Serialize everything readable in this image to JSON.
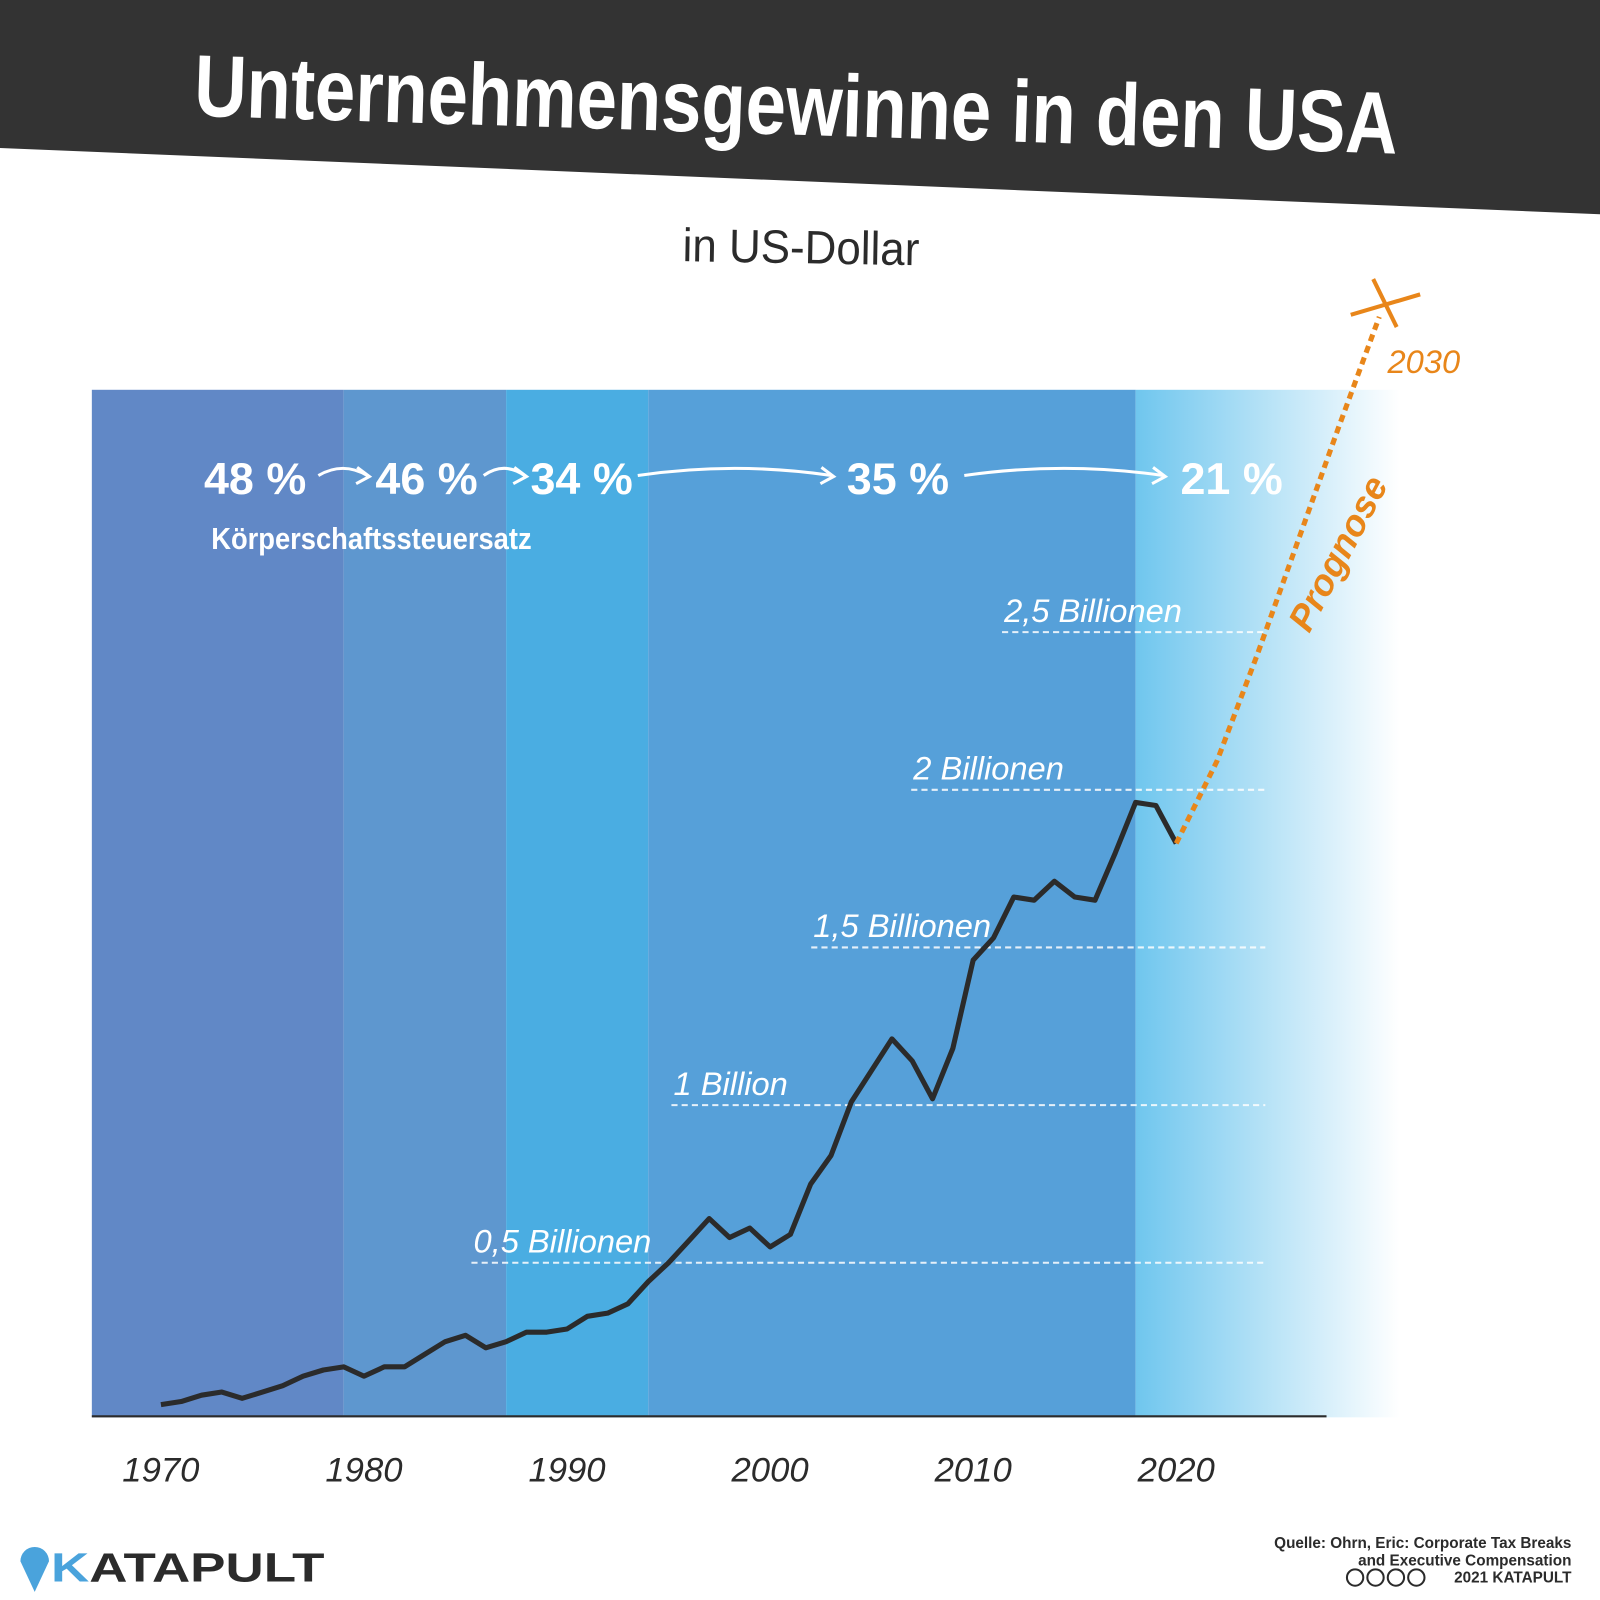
{
  "chart_data": {
    "type": "line",
    "title": "Unternehmensgewinne in den USA",
    "subtitle": "in US-Dollar",
    "xlim": [
      1966.6,
      2027.4
    ],
    "xticks": [
      1970,
      1980,
      1990,
      2000,
      2010,
      2020
    ],
    "ylim": [
      0,
      3.5
    ],
    "yticks": [
      {
        "value": 0.5,
        "label": "0,5  Billionen"
      },
      {
        "value": 1,
        "label": "1 Billion"
      },
      {
        "value": 1.5,
        "label": "1,5 Billionen"
      },
      {
        "value": 2,
        "label": "2 Billionen"
      },
      {
        "value": 2.5,
        "label": "2,5 Billionen"
      }
    ],
    "grid": true,
    "series": [
      {
        "color": "#2b2b2b",
        "x": [
          1970,
          1971,
          1972,
          1973,
          1974,
          1975,
          1976,
          1977,
          1978,
          1979,
          1980,
          1981,
          1982,
          1983,
          1984,
          1985,
          1986,
          1987,
          1988,
          1989,
          1990,
          1991,
          1992,
          1993,
          1994,
          1995,
          1996,
          1997,
          1998,
          1999,
          2000,
          2001,
          2002,
          2003,
          2004,
          2005,
          2006,
          2007,
          2008,
          2009,
          2010,
          2011,
          2012,
          2013,
          2014,
          2015,
          2016,
          2017,
          2018,
          2019,
          2020
        ],
        "values": [
          0.05,
          0.06,
          0.08,
          0.09,
          0.07,
          0.09,
          0.11,
          0.14,
          0.16,
          0.17,
          0.14,
          0.17,
          0.17,
          0.21,
          0.25,
          0.27,
          0.23,
          0.25,
          0.28,
          0.28,
          0.29,
          0.33,
          0.34,
          0.37,
          0.44,
          0.5,
          0.57,
          0.64,
          0.58,
          0.61,
          0.55,
          0.59,
          0.75,
          0.84,
          1.01,
          1.11,
          1.21,
          1.14,
          1.02,
          1.18,
          1.46,
          1.53,
          1.66,
          1.65,
          1.71,
          1.66,
          1.65,
          1.8,
          1.96,
          1.95,
          1.83
        ]
      },
      {
        "name": "Prognose",
        "color": "#e8861a",
        "dashed": true,
        "x": [
          2020,
          2021,
          2022,
          2024,
          2026,
          2028,
          2030
        ],
        "values": [
          1.83,
          1.96,
          2.09,
          2.43,
          2.79,
          3.15,
          3.5
        ]
      }
    ],
    "forecast_end_label": "2030",
    "tax_rate_label": "Körperschaftssteuersatz",
    "tax_bands": [
      {
        "label": "48 %",
        "from": 1966.6,
        "to": 1979,
        "color": "#6188c6"
      },
      {
        "label": "46 %",
        "from": 1979,
        "to": 1987,
        "color": "#5e97cf"
      },
      {
        "label": "34 %",
        "from": 1987,
        "to": 1994,
        "color": "#4aade2"
      },
      {
        "label": "35 %",
        "from": 1994,
        "to": 2018,
        "color": "#56a0d9"
      },
      {
        "label": "21 %",
        "from": 2018,
        "to": 2031,
        "color": "#6fc6ee"
      }
    ]
  },
  "footer": {
    "brand": "KATAPULT",
    "source_lines": [
      "Quelle: Ohrn, Eric: Corporate Tax Breaks",
      "and Executive Compensation"
    ],
    "copyright": "2021 KATAPULT"
  }
}
